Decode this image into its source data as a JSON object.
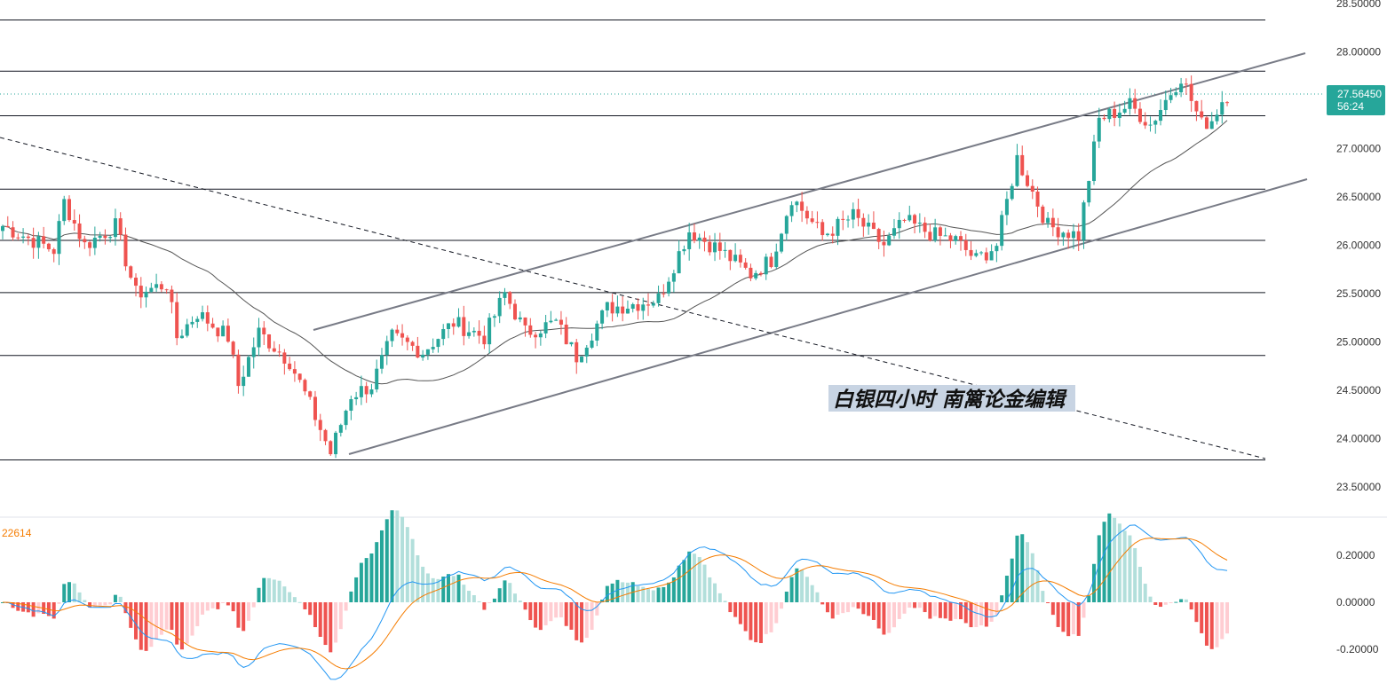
{
  "price_axis": {
    "ticks": [
      "28.50000",
      "28.00000",
      "27.50000",
      "27.00000",
      "26.50000",
      "26.00000",
      "25.50000",
      "25.00000",
      "24.50000",
      "24.00000",
      "23.50000"
    ],
    "tick_values": [
      28.5,
      28.0,
      27.5,
      27.0,
      26.5,
      26.0,
      25.5,
      25.0,
      24.5,
      24.0,
      23.5
    ]
  },
  "last_price": {
    "label": "27.56450",
    "value": 27.5645,
    "countdown": "56:24",
    "color": "#26a69a"
  },
  "annotation": {
    "text": "白银四小时 南篱论金编辑",
    "bg_color": "#c8d4e3"
  },
  "indicator": {
    "value_label": "22614",
    "ticks": [
      "0.20000",
      "0.00000",
      "-0.20000"
    ],
    "tick_values": [
      0.2,
      0.0,
      -0.2
    ],
    "macd_color": "#2196f3",
    "signal_color": "#f57c00"
  },
  "colors": {
    "up": "#26a69a",
    "down": "#ef5350",
    "ma": "#555555",
    "channel": "#787b86"
  },
  "chart_data": {
    "type": "candlestick",
    "horizontal_levels": [
      28.33,
      27.8,
      27.34,
      26.58,
      26.05,
      25.51,
      24.86,
      23.78
    ],
    "channel_upper": [
      [
        24.85,
        28.0
      ],
      [
        27.99,
        0
      ]
    ],
    "ohlc": [],
    "ma": [],
    "macd": {
      "hist": [],
      "macd": [],
      "signal": []
    }
  }
}
